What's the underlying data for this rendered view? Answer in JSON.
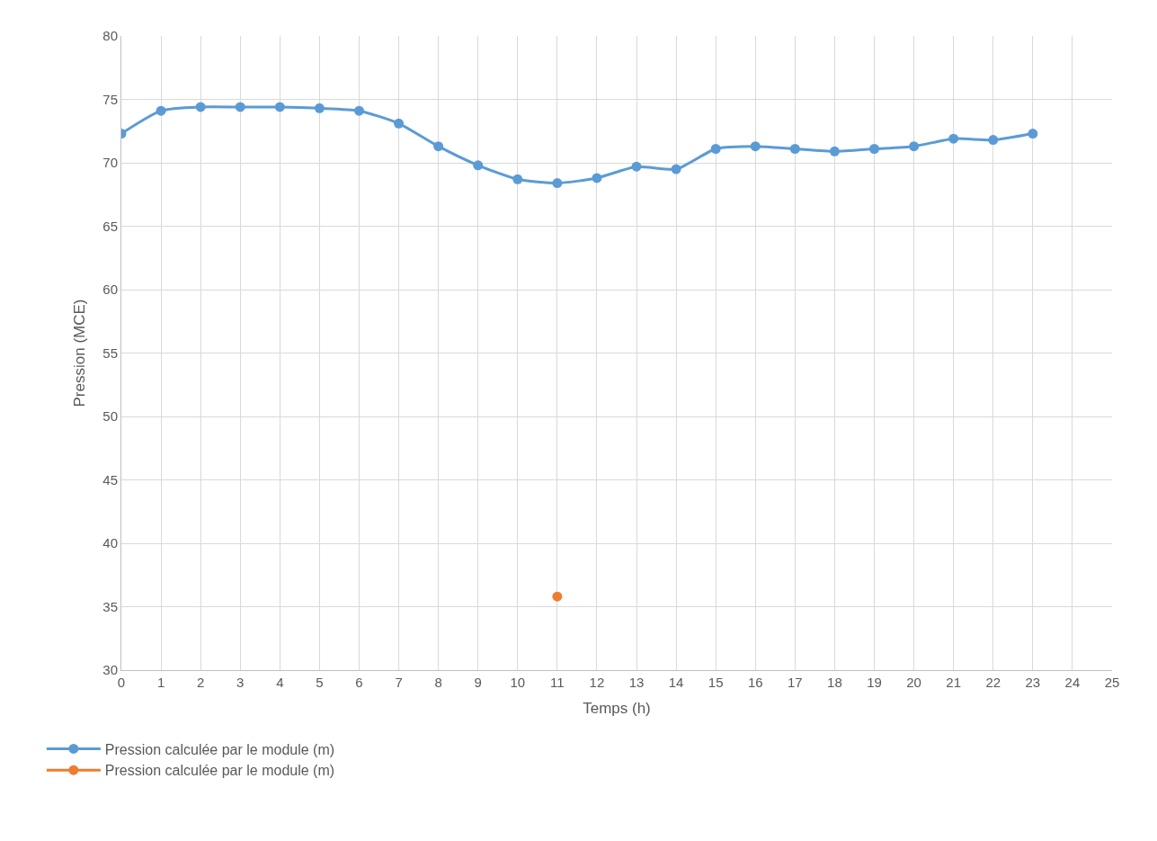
{
  "chart_data": {
    "type": "line",
    "xlabel": "Temps (h)",
    "ylabel": "Pression (MCE)",
    "x": [
      0,
      1,
      2,
      3,
      4,
      5,
      6,
      7,
      8,
      9,
      10,
      11,
      12,
      13,
      14,
      15,
      16,
      17,
      18,
      19,
      20,
      21,
      22,
      23
    ],
    "series": [
      {
        "name": "Pression calculée par le module (m)",
        "color": "#5b9bd5",
        "values": [
          72.3,
          74.1,
          74.4,
          74.4,
          74.4,
          74.3,
          74.1,
          73.1,
          71.3,
          69.8,
          68.7,
          68.4,
          68.8,
          69.7,
          69.5,
          71.1,
          71.3,
          71.1,
          70.9,
          71.1,
          71.3,
          71.9,
          71.8,
          72.3
        ]
      },
      {
        "name": "Pression calculée par le module (m)",
        "color": "#ed7d31",
        "x": [
          11
        ],
        "values": [
          35.8
        ]
      }
    ],
    "xlim": [
      0,
      25
    ],
    "xticks": [
      0,
      1,
      2,
      3,
      4,
      5,
      6,
      7,
      8,
      9,
      10,
      11,
      12,
      13,
      14,
      15,
      16,
      17,
      18,
      19,
      20,
      21,
      22,
      23,
      24,
      25
    ],
    "ylim": [
      30,
      80
    ],
    "yticks": [
      30,
      35,
      40,
      45,
      50,
      55,
      60,
      65,
      70,
      75,
      80
    ],
    "grid": true,
    "legend": "bottom left",
    "marker": "circle",
    "line_style": "solid"
  }
}
